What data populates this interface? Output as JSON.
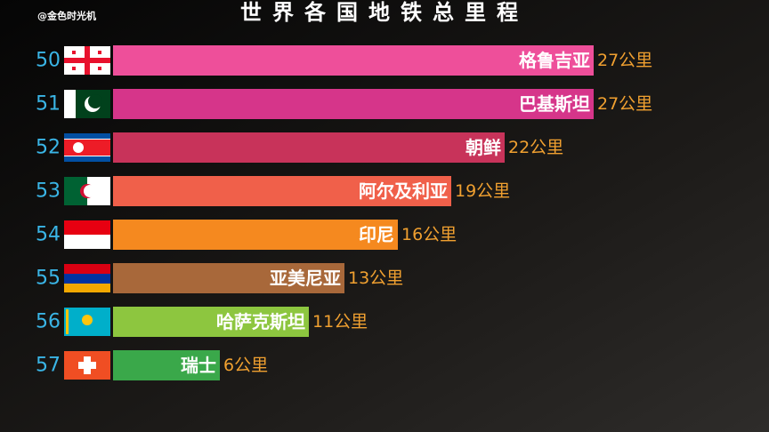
{
  "chart_data": {
    "type": "bar",
    "orientation": "horizontal",
    "title": "世界各国地铁总里程",
    "watermark": "@金色时光机",
    "ranks": [
      50,
      51,
      52,
      53,
      54,
      55,
      56,
      57
    ],
    "categories": [
      "格鲁吉亚",
      "巴基斯坦",
      "朝鲜",
      "阿尔及利亚",
      "印尼",
      "亚美尼亚",
      "哈萨克斯坦",
      "瑞士"
    ],
    "values": [
      27,
      27,
      22,
      19,
      16,
      13,
      11,
      6
    ],
    "value_labels": [
      "27公里",
      "27公里",
      "22公里",
      "19公里",
      "16公里",
      "13公里",
      "11公里",
      "6公里"
    ],
    "colors": [
      "#ee4f9a",
      "#d6358a",
      "#c8335a",
      "#f0604a",
      "#f5891f",
      "#a8683a",
      "#8dc63f",
      "#3aa84a"
    ]
  }
}
